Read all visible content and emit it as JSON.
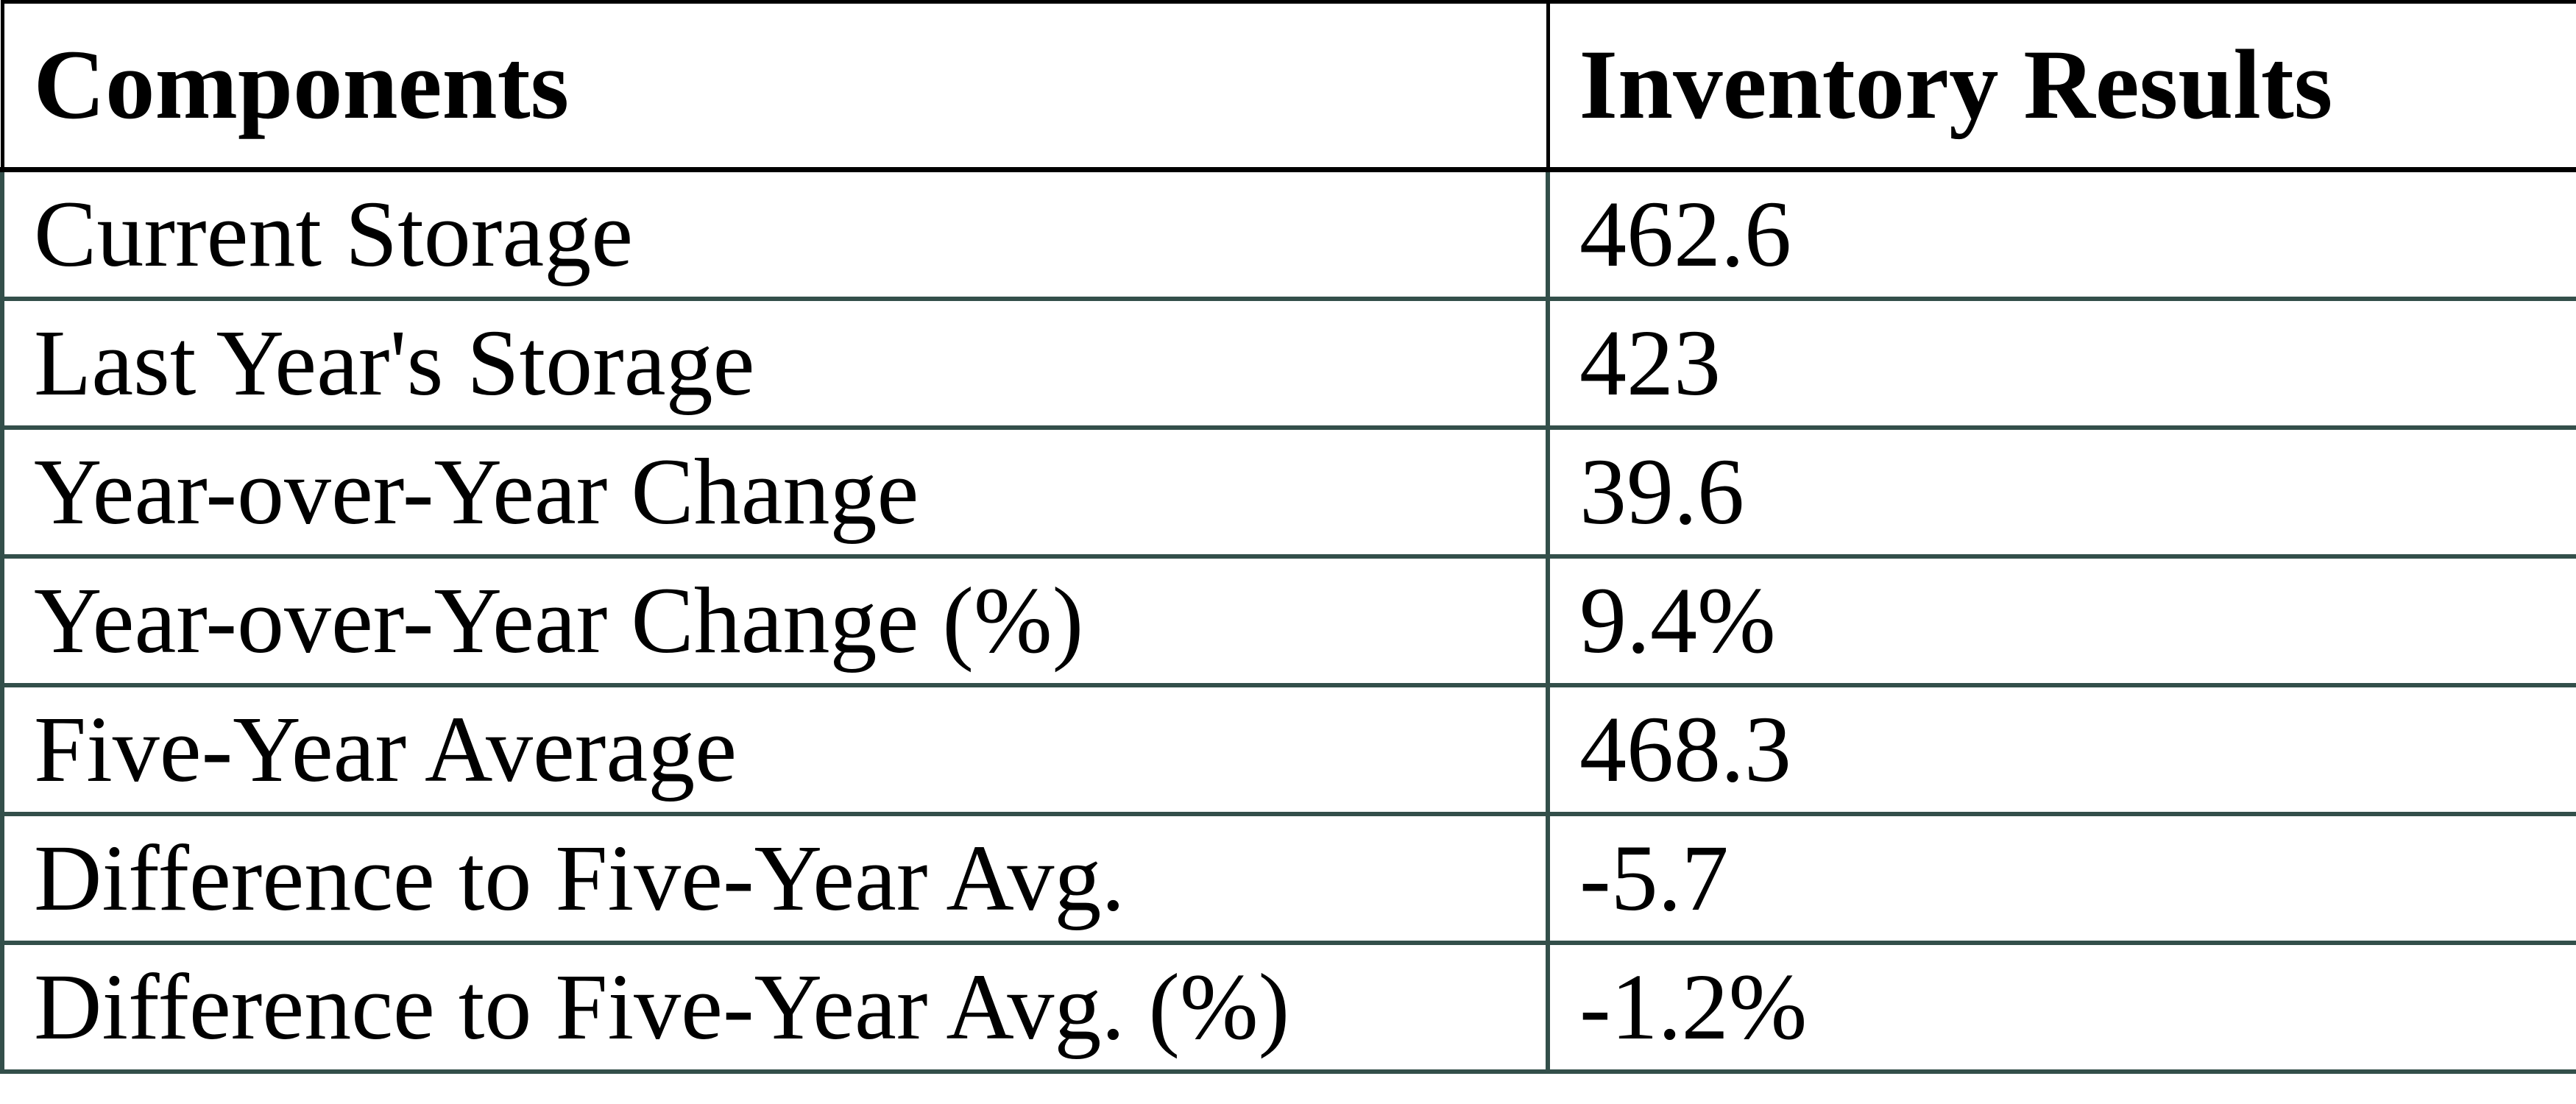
{
  "chart_data": {
    "type": "table",
    "columns": [
      "Components",
      "Inventory Results"
    ],
    "rows": [
      [
        "Current Storage",
        "462.6"
      ],
      [
        "Last Year's Storage",
        "423"
      ],
      [
        "Year-over-Year Change",
        "39.6"
      ],
      [
        "Year-over-Year Change (%)",
        "9.4%"
      ],
      [
        "Five-Year Average",
        "468.3"
      ],
      [
        "Difference to Five-Year Avg.",
        "-5.7"
      ],
      [
        "Difference to Five-Year Avg. (%)",
        "-1.2%"
      ]
    ],
    "layout": {
      "grid": "on",
      "header_row": "bold"
    }
  },
  "colors": {
    "background": "#ffffff",
    "text": "#000000",
    "header_border": "#000000",
    "body_border": "#334f4a"
  }
}
